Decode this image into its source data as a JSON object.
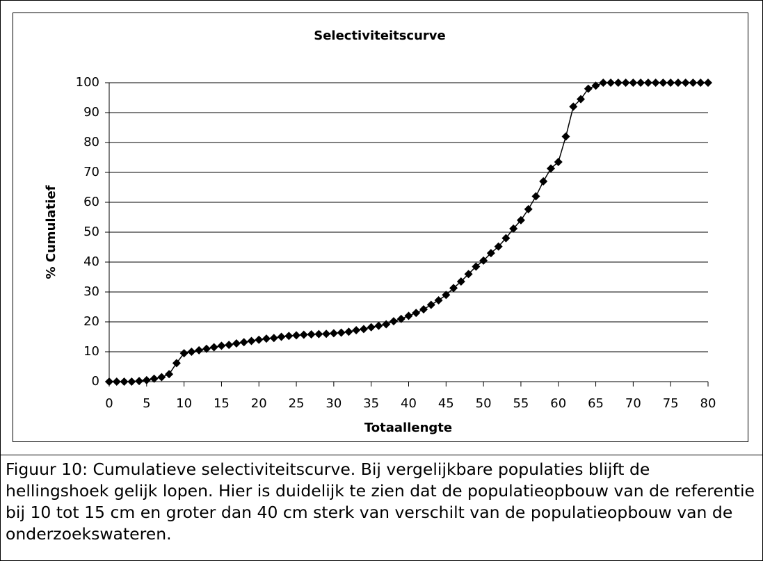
{
  "chart_data": {
    "type": "line",
    "title": "Selectiviteitscurve",
    "x_label": "Totaallengte",
    "y_label": "% Cumulatief",
    "x": [
      0,
      1,
      2,
      3,
      4,
      5,
      6,
      7,
      8,
      9,
      10,
      11,
      12,
      13,
      14,
      15,
      16,
      17,
      18,
      19,
      20,
      21,
      22,
      23,
      24,
      25,
      26,
      27,
      28,
      29,
      30,
      31,
      32,
      33,
      34,
      35,
      36,
      37,
      38,
      39,
      40,
      41,
      42,
      43,
      44,
      45,
      46,
      47,
      48,
      49,
      50,
      51,
      52,
      53,
      54,
      55,
      56,
      57,
      58,
      59,
      60,
      61,
      62,
      63,
      64,
      65,
      66,
      67,
      68,
      69,
      70,
      71,
      72,
      73,
      74,
      75,
      76,
      77,
      78,
      79,
      80
    ],
    "series": [
      {
        "name": "Selectiviteitscurve",
        "color": "#000000",
        "values": [
          0,
          0,
          0,
          0,
          0.2,
          0.5,
          1,
          1.5,
          2.5,
          6.2,
          9.5,
          10,
          10.5,
          11,
          11.5,
          12,
          12.3,
          12.8,
          13.2,
          13.6,
          14,
          14.4,
          14.6,
          15,
          15.3,
          15.5,
          15.7,
          15.8,
          15.9,
          16,
          16.2,
          16.4,
          16.7,
          17.2,
          17.6,
          18.2,
          18.7,
          19.2,
          20.2,
          21,
          22,
          23,
          24.2,
          25.7,
          27.2,
          29,
          31.3,
          33.5,
          36,
          38.5,
          40.5,
          43,
          45.2,
          48,
          51.2,
          54,
          57.7,
          62,
          67,
          71.3,
          73.5,
          82,
          92,
          94.5,
          98,
          99,
          100,
          100,
          100,
          100,
          100,
          100,
          100,
          100,
          100,
          100,
          100,
          100,
          100,
          100,
          100
        ]
      }
    ],
    "xlim": [
      0,
      80
    ],
    "xticks": [
      0,
      5,
      10,
      15,
      20,
      25,
      30,
      35,
      40,
      45,
      50,
      55,
      60,
      65,
      70,
      75,
      80
    ],
    "ylim": [
      0,
      100
    ],
    "yticks": [
      0,
      10,
      20,
      30,
      40,
      50,
      60,
      70,
      80,
      90,
      100
    ],
    "grid": true
  },
  "caption": "Figuur 10: Cumulatieve selectiviteitscurve. Bij vergelijkbare populaties blijft de hellingshoek gelijk lopen. Hier is duidelijk te zien dat de populatieopbouw van de referentie bij 10 tot 15 cm en groter dan 40 cm sterk van verschilt van de populatieopbouw van de onderzoekswateren."
}
